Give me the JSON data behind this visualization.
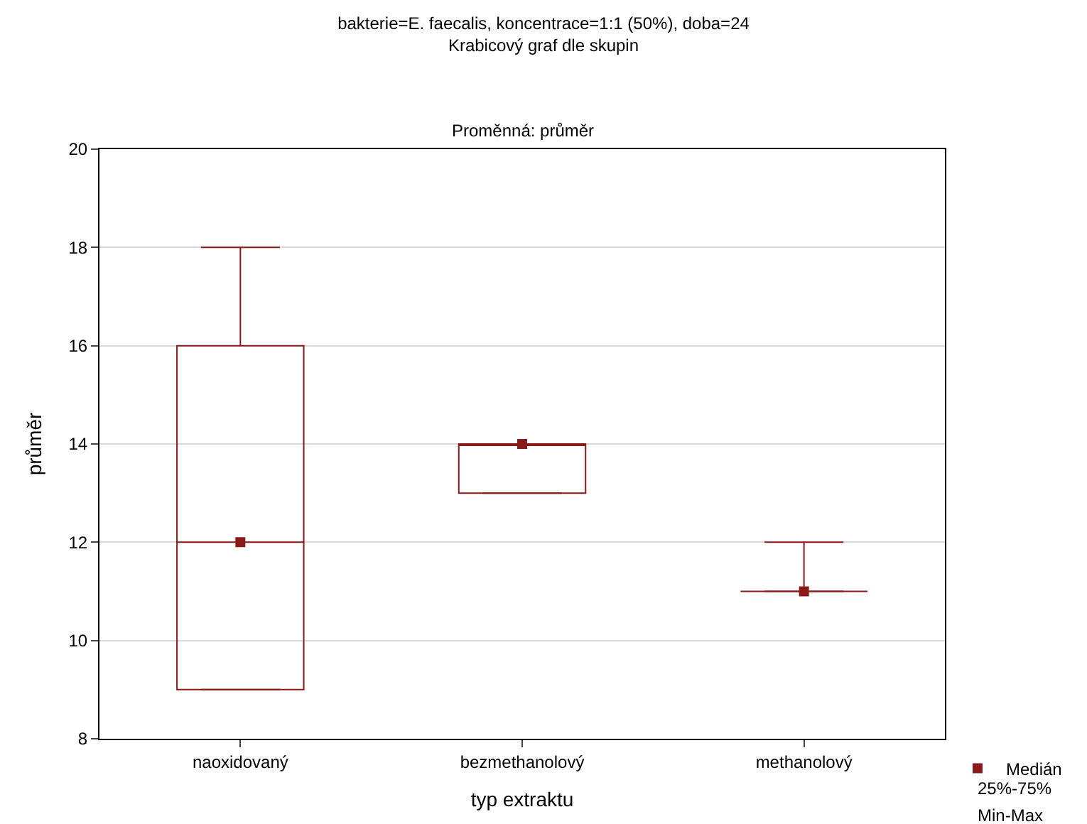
{
  "chart_data": {
    "type": "box",
    "title": "bakterie=E. faecalis, koncentrace=1:1 (50%), doba=24",
    "subtitle": "Krabicový graf dle skupin",
    "annotations": [
      "Proměnná: průměr",
      "25%-75%",
      "Min-Max"
    ],
    "xlabel": "typ extraktu",
    "ylabel": "průměr",
    "categories": [
      "naoxidovaný",
      "bezmethanolový",
      "methanolový"
    ],
    "color": "#8b1a1a",
    "boxes": [
      {
        "low": 9,
        "q1": 9,
        "median": 12,
        "q3": 16,
        "high": 18
      },
      {
        "low": 13,
        "q1": 13,
        "median": 14,
        "q3": 14,
        "high": 14
      },
      {
        "low": 11,
        "q1": 11,
        "median": 11,
        "q3": 11,
        "high": 12
      }
    ],
    "series": [
      {
        "type": "scatter",
        "name": "Medián",
        "color": "#8b1a1a",
        "marker": "square",
        "x": [
          "naoxidovaný",
          "bezmethanolový",
          "methanolový"
        ],
        "values": [
          12,
          14,
          11
        ]
      }
    ],
    "ylim": [
      8,
      20
    ],
    "yticks": [
      8,
      10,
      12,
      14,
      16,
      18,
      20
    ],
    "grid": "y",
    "legend": "bottom right"
  }
}
